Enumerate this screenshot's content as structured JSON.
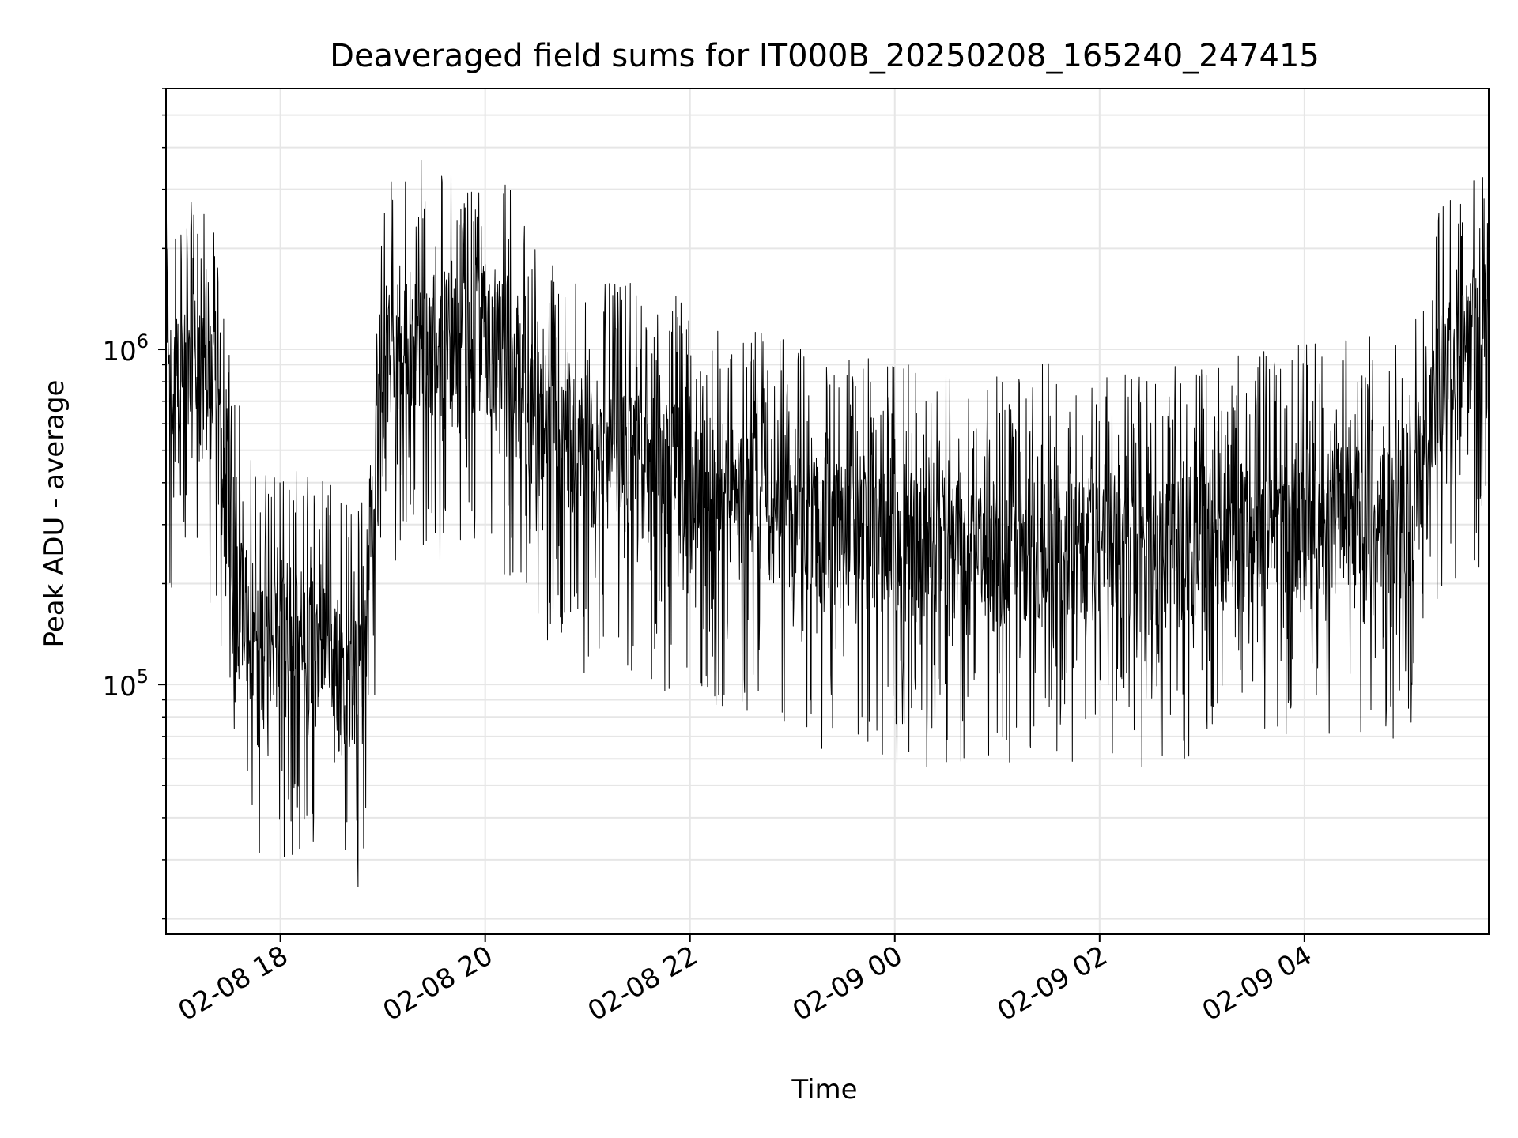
{
  "chart_data": {
    "type": "line",
    "title": "Deaveraged field sums for IT000B_20250208_165240_247415",
    "xlabel": "Time",
    "ylabel": "Peak ADU - average",
    "x_ticks": [
      "02-08 18",
      "02-08 20",
      "02-08 22",
      "02-09 00",
      "02-09 02",
      "02-09 04"
    ],
    "y_ticks": [
      {
        "base": "10",
        "exp": "5",
        "value": 100000
      },
      {
        "base": "10",
        "exp": "6",
        "value": 1000000
      }
    ],
    "xlim": [
      "2025-02-08 16:53",
      "2025-02-09 05:48"
    ],
    "ylim": [
      18000,
      6000000
    ],
    "y_scale": "log",
    "grid": true,
    "line_color": "#000000",
    "grid_color": "#e6e6e6",
    "series": [
      {
        "x": [
          "2025-02-08 16:53",
          "2025-02-08 17:00",
          "2025-02-08 17:10",
          "2025-02-08 17:20",
          "2025-02-08 17:30",
          "2025-02-08 17:40",
          "2025-02-08 17:50",
          "2025-02-08 18:00",
          "2025-02-08 18:10",
          "2025-02-08 18:20",
          "2025-02-08 18:30",
          "2025-02-08 18:40",
          "2025-02-08 18:50",
          "2025-02-08 19:00",
          "2025-02-08 19:20",
          "2025-02-08 19:40",
          "2025-02-08 20:00",
          "2025-02-08 20:15",
          "2025-02-08 20:30",
          "2025-02-08 21:00",
          "2025-02-08 21:30",
          "2025-02-08 22:00",
          "2025-02-08 22:30",
          "2025-02-08 23:00",
          "2025-02-08 23:30",
          "2025-02-09 00:00",
          "2025-02-09 00:30",
          "2025-02-09 01:00",
          "2025-02-09 01:30",
          "2025-02-09 02:00",
          "2025-02-09 02:30",
          "2025-02-09 03:00",
          "2025-02-09 03:30",
          "2025-02-09 04:00",
          "2025-02-09 04:30",
          "2025-02-09 05:00",
          "2025-02-09 05:20",
          "2025-02-09 05:40",
          "2025-02-09 05:48"
        ],
        "values": [
          700000,
          750000,
          800000,
          700000,
          300000,
          150000,
          130000,
          140000,
          130000,
          120000,
          130000,
          100000,
          110000,
          900000,
          1100000,
          1000000,
          1100000,
          900000,
          600000,
          450000,
          450000,
          400000,
          350000,
          300000,
          280000,
          260000,
          250000,
          240000,
          260000,
          260000,
          250000,
          260000,
          280000,
          300000,
          320000,
          300000,
          800000,
          1000000,
          1000000
        ]
      }
    ],
    "noise": {
      "cycle_minutes": 0.25,
      "max_up_ratio": 3.5,
      "max_down_ratio": 4.5
    }
  }
}
